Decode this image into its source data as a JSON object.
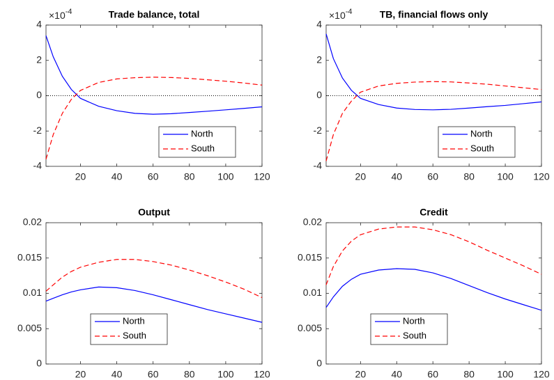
{
  "chart_data": [
    {
      "type": "line",
      "title": "Trade balance, total",
      "y_multiplier": {
        "base": "×10",
        "exponent": "-4"
      },
      "x": [
        1,
        5,
        10,
        15,
        20,
        30,
        40,
        50,
        60,
        70,
        80,
        90,
        100,
        110,
        120
      ],
      "xlim": [
        1,
        120
      ],
      "xticks": [
        20,
        40,
        60,
        80,
        100,
        120
      ],
      "ylim": [
        -4,
        4
      ],
      "yticks": [
        -4,
        -2,
        0,
        2,
        4
      ],
      "zero_line": true,
      "legend": "southeast",
      "series": [
        {
          "name": "North",
          "color": "#0000ff",
          "dash": "solid",
          "values": [
            3.4,
            2.2,
            1.1,
            0.35,
            -0.15,
            -0.6,
            -0.85,
            -1.0,
            -1.05,
            -1.02,
            -0.95,
            -0.88,
            -0.8,
            -0.72,
            -0.63
          ]
        },
        {
          "name": "South",
          "color": "#ff0000",
          "dash": "dashed",
          "values": [
            -3.6,
            -2.2,
            -1.0,
            -0.2,
            0.3,
            0.75,
            0.95,
            1.02,
            1.05,
            1.03,
            0.98,
            0.9,
            0.82,
            0.72,
            0.6
          ]
        }
      ]
    },
    {
      "type": "line",
      "title": "TB, financial flows only",
      "y_multiplier": {
        "base": "×10",
        "exponent": "-4"
      },
      "x": [
        1,
        5,
        10,
        15,
        20,
        30,
        40,
        50,
        60,
        70,
        80,
        90,
        100,
        110,
        120
      ],
      "xlim": [
        1,
        120
      ],
      "xticks": [
        20,
        40,
        60,
        80,
        100,
        120
      ],
      "ylim": [
        -4,
        4
      ],
      "yticks": [
        -4,
        -2,
        0,
        2,
        4
      ],
      "zero_line": true,
      "legend": "southeast",
      "series": [
        {
          "name": "North",
          "color": "#0000ff",
          "dash": "solid",
          "values": [
            3.5,
            2.1,
            1.0,
            0.3,
            -0.15,
            -0.5,
            -0.7,
            -0.78,
            -0.8,
            -0.77,
            -0.7,
            -0.62,
            -0.55,
            -0.45,
            -0.35
          ]
        },
        {
          "name": "South",
          "color": "#ff0000",
          "dash": "dashed",
          "values": [
            -3.7,
            -2.2,
            -1.0,
            -0.3,
            0.2,
            0.55,
            0.7,
            0.77,
            0.8,
            0.78,
            0.72,
            0.65,
            0.55,
            0.45,
            0.35
          ]
        }
      ]
    },
    {
      "type": "line",
      "title": "Output",
      "x": [
        1,
        5,
        10,
        15,
        20,
        30,
        40,
        50,
        60,
        70,
        80,
        90,
        100,
        110,
        120
      ],
      "xlim": [
        1,
        120
      ],
      "xticks": [
        20,
        40,
        60,
        80,
        100,
        120
      ],
      "ylim": [
        0,
        0.02
      ],
      "yticks": [
        0,
        0.005,
        0.01,
        0.015,
        0.02
      ],
      "zero_line": false,
      "legend": "southwest",
      "series": [
        {
          "name": "North",
          "color": "#0000ff",
          "dash": "solid",
          "values": [
            0.0089,
            0.0093,
            0.0098,
            0.0102,
            0.0105,
            0.0109,
            0.0108,
            0.0104,
            0.0098,
            0.0091,
            0.0084,
            0.0077,
            0.0071,
            0.0065,
            0.0059
          ]
        },
        {
          "name": "South",
          "color": "#ff0000",
          "dash": "dashed",
          "values": [
            0.0103,
            0.0112,
            0.0123,
            0.0131,
            0.0137,
            0.0144,
            0.0148,
            0.0148,
            0.0145,
            0.014,
            0.0133,
            0.0125,
            0.0116,
            0.0106,
            0.0094
          ]
        }
      ]
    },
    {
      "type": "line",
      "title": "Credit",
      "x": [
        1,
        5,
        10,
        15,
        20,
        30,
        40,
        50,
        60,
        70,
        80,
        90,
        100,
        110,
        120
      ],
      "xlim": [
        1,
        120
      ],
      "xticks": [
        20,
        40,
        60,
        80,
        100,
        120
      ],
      "ylim": [
        0,
        0.02
      ],
      "yticks": [
        0,
        0.005,
        0.01,
        0.015,
        0.02
      ],
      "zero_line": false,
      "legend": "southwest",
      "series": [
        {
          "name": "North",
          "color": "#0000ff",
          "dash": "solid",
          "values": [
            0.008,
            0.0095,
            0.011,
            0.012,
            0.0127,
            0.0133,
            0.0135,
            0.0134,
            0.0129,
            0.0121,
            0.0111,
            0.0101,
            0.0092,
            0.0084,
            0.0076
          ]
        },
        {
          "name": "South",
          "color": "#ff0000",
          "dash": "dashed",
          "values": [
            0.0112,
            0.0138,
            0.016,
            0.0174,
            0.0183,
            0.0191,
            0.0194,
            0.0194,
            0.019,
            0.0183,
            0.0173,
            0.0161,
            0.015,
            0.0139,
            0.0127
          ]
        }
      ]
    }
  ]
}
